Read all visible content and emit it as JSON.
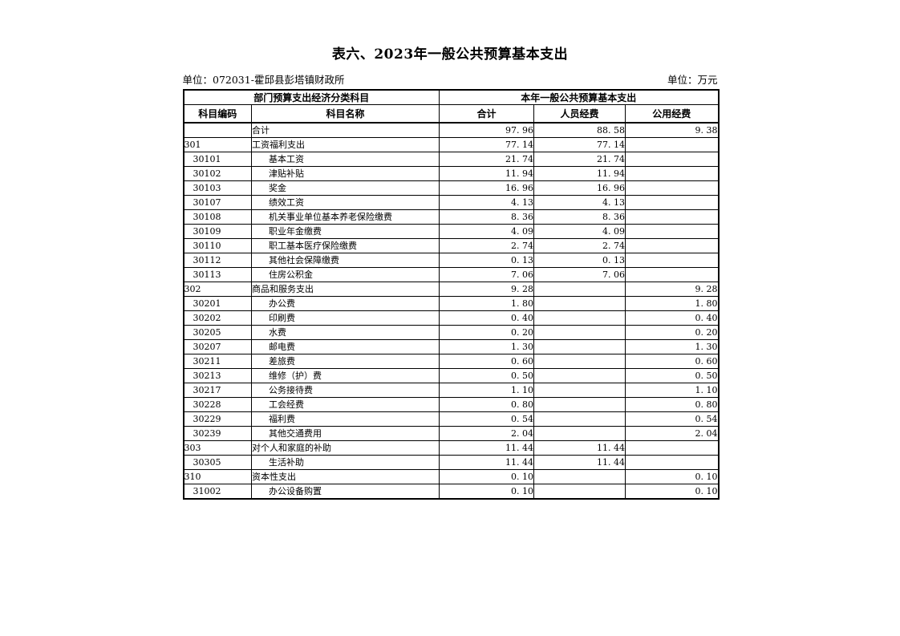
{
  "page": {
    "title": "表六、2023年一般公共预算基本支出",
    "unit_left": "单位：072031-霍邱县彭塔镇财政所",
    "unit_right": "单位：万元"
  },
  "colors": {
    "text": "#000000",
    "background": "#ffffff",
    "border": "#000000"
  },
  "table": {
    "group_headers": {
      "left": "部门预算支出经济分类科目",
      "right": "本年一般公共预算基本支出"
    },
    "columns": [
      "科目编码",
      "科目名称",
      "合计",
      "人员经费",
      "公用经费"
    ],
    "rows": [
      {
        "code": "",
        "name": "合计",
        "total": "97. 96",
        "personnel": "88. 58",
        "public": "9. 38",
        "level": 0
      },
      {
        "code": "301",
        "name": "工资福利支出",
        "total": "77. 14",
        "personnel": "77. 14",
        "public": "",
        "level": 0
      },
      {
        "code": "30101",
        "name": "基本工资",
        "total": "21. 74",
        "personnel": "21. 74",
        "public": "",
        "level": 1
      },
      {
        "code": "30102",
        "name": "津贴补贴",
        "total": "11. 94",
        "personnel": "11. 94",
        "public": "",
        "level": 1
      },
      {
        "code": "30103",
        "name": "奖金",
        "total": "16. 96",
        "personnel": "16. 96",
        "public": "",
        "level": 1
      },
      {
        "code": "30107",
        "name": "绩效工资",
        "total": "4. 13",
        "personnel": "4. 13",
        "public": "",
        "level": 1
      },
      {
        "code": "30108",
        "name": "机关事业单位基本养老保险缴费",
        "total": "8. 36",
        "personnel": "8. 36",
        "public": "",
        "level": 1
      },
      {
        "code": "30109",
        "name": "职业年金缴费",
        "total": "4. 09",
        "personnel": "4. 09",
        "public": "",
        "level": 1
      },
      {
        "code": "30110",
        "name": "职工基本医疗保险缴费",
        "total": "2. 74",
        "personnel": "2. 74",
        "public": "",
        "level": 1
      },
      {
        "code": "30112",
        "name": "其他社会保障缴费",
        "total": "0. 13",
        "personnel": "0. 13",
        "public": "",
        "level": 1
      },
      {
        "code": "30113",
        "name": "住房公积金",
        "total": "7. 06",
        "personnel": "7. 06",
        "public": "",
        "level": 1
      },
      {
        "code": "302",
        "name": "商品和服务支出",
        "total": "9. 28",
        "personnel": "",
        "public": "9. 28",
        "level": 0
      },
      {
        "code": "30201",
        "name": "办公费",
        "total": "1. 80",
        "personnel": "",
        "public": "1. 80",
        "level": 1
      },
      {
        "code": "30202",
        "name": "印刷费",
        "total": "0. 40",
        "personnel": "",
        "public": "0. 40",
        "level": 1
      },
      {
        "code": "30205",
        "name": "水费",
        "total": "0. 20",
        "personnel": "",
        "public": "0. 20",
        "level": 1
      },
      {
        "code": "30207",
        "name": "邮电费",
        "total": "1. 30",
        "personnel": "",
        "public": "1. 30",
        "level": 1
      },
      {
        "code": "30211",
        "name": "差旅费",
        "total": "0. 60",
        "personnel": "",
        "public": "0. 60",
        "level": 1
      },
      {
        "code": "30213",
        "name": "维修（护）费",
        "total": "0. 50",
        "personnel": "",
        "public": "0. 50",
        "level": 1
      },
      {
        "code": "30217",
        "name": "公务接待费",
        "total": "1. 10",
        "personnel": "",
        "public": "1. 10",
        "level": 1
      },
      {
        "code": "30228",
        "name": "工会经费",
        "total": "0. 80",
        "personnel": "",
        "public": "0. 80",
        "level": 1
      },
      {
        "code": "30229",
        "name": "福利费",
        "total": "0. 54",
        "personnel": "",
        "public": "0. 54",
        "level": 1
      },
      {
        "code": "30239",
        "name": "其他交通费用",
        "total": "2. 04",
        "personnel": "",
        "public": "2. 04",
        "level": 1
      },
      {
        "code": "303",
        "name": "对个人和家庭的补助",
        "total": "11. 44",
        "personnel": "11. 44",
        "public": "",
        "level": 0
      },
      {
        "code": "30305",
        "name": "生活补助",
        "total": "11. 44",
        "personnel": "11. 44",
        "public": "",
        "level": 1
      },
      {
        "code": "310",
        "name": "资本性支出",
        "total": "0. 10",
        "personnel": "",
        "public": "0. 10",
        "level": 0
      },
      {
        "code": "31002",
        "name": "办公设备购置",
        "total": "0. 10",
        "personnel": "",
        "public": "0. 10",
        "level": 1
      }
    ]
  }
}
